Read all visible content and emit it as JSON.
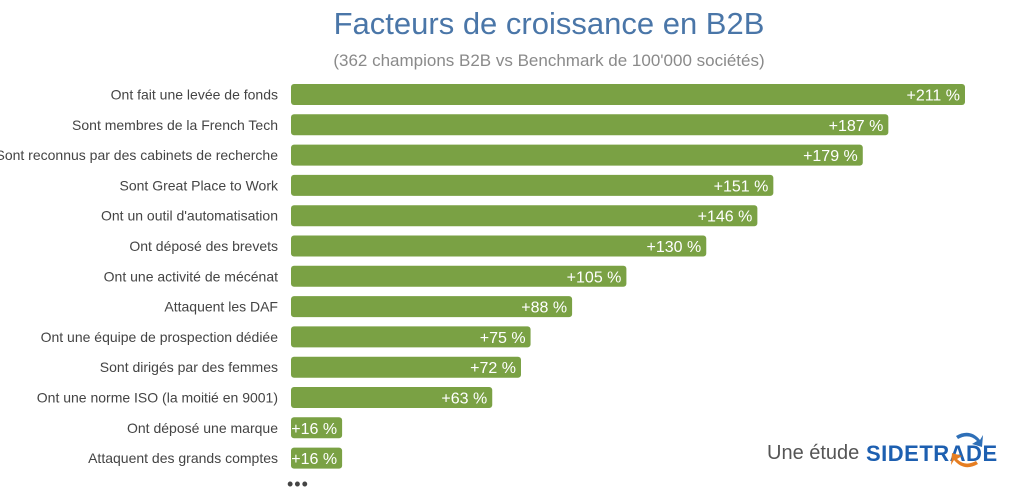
{
  "title": "Facteurs de croissance en B2B",
  "subtitle": "(362 champions B2B vs Benchmark de 100'000 sociétés)",
  "footer": {
    "text": "Une étude",
    "brand": "SIDETRADE",
    "brand_icon": "sidetrade-arrows-icon",
    "more": "•••"
  },
  "colors": {
    "bar": "#7aa144",
    "title": "#4a76a8",
    "brand": "#1d5fb0"
  },
  "chart_data": {
    "type": "bar",
    "orientation": "horizontal",
    "categories": [
      "Ont fait une levée de fonds",
      "Sont membres de la French Tech",
      "Sont reconnus par des cabinets de recherche",
      "Sont Great Place to Work",
      "Ont un outil d'automatisation",
      "Ont déposé des brevets",
      "Ont une activité de mécénat",
      "Attaquent les DAF",
      "Ont une équipe de prospection dédiée",
      "Sont dirigés par des femmes",
      "Ont une norme ISO (la moitié en 9001)",
      "Ont déposé une marque",
      "Attaquent des grands comptes"
    ],
    "values": [
      211,
      187,
      179,
      151,
      146,
      130,
      105,
      88,
      75,
      72,
      63,
      16,
      16
    ],
    "data_labels": [
      "+211 %",
      "+187 %",
      "+179 %",
      "+151 %",
      "+146 %",
      "+130 %",
      "+105 %",
      "+88 %",
      "+75 %",
      "+72 %",
      "+63 %",
      "+16 %",
      "+16 %"
    ],
    "xlim": [
      0,
      211
    ],
    "grid": false,
    "legend": "none"
  }
}
